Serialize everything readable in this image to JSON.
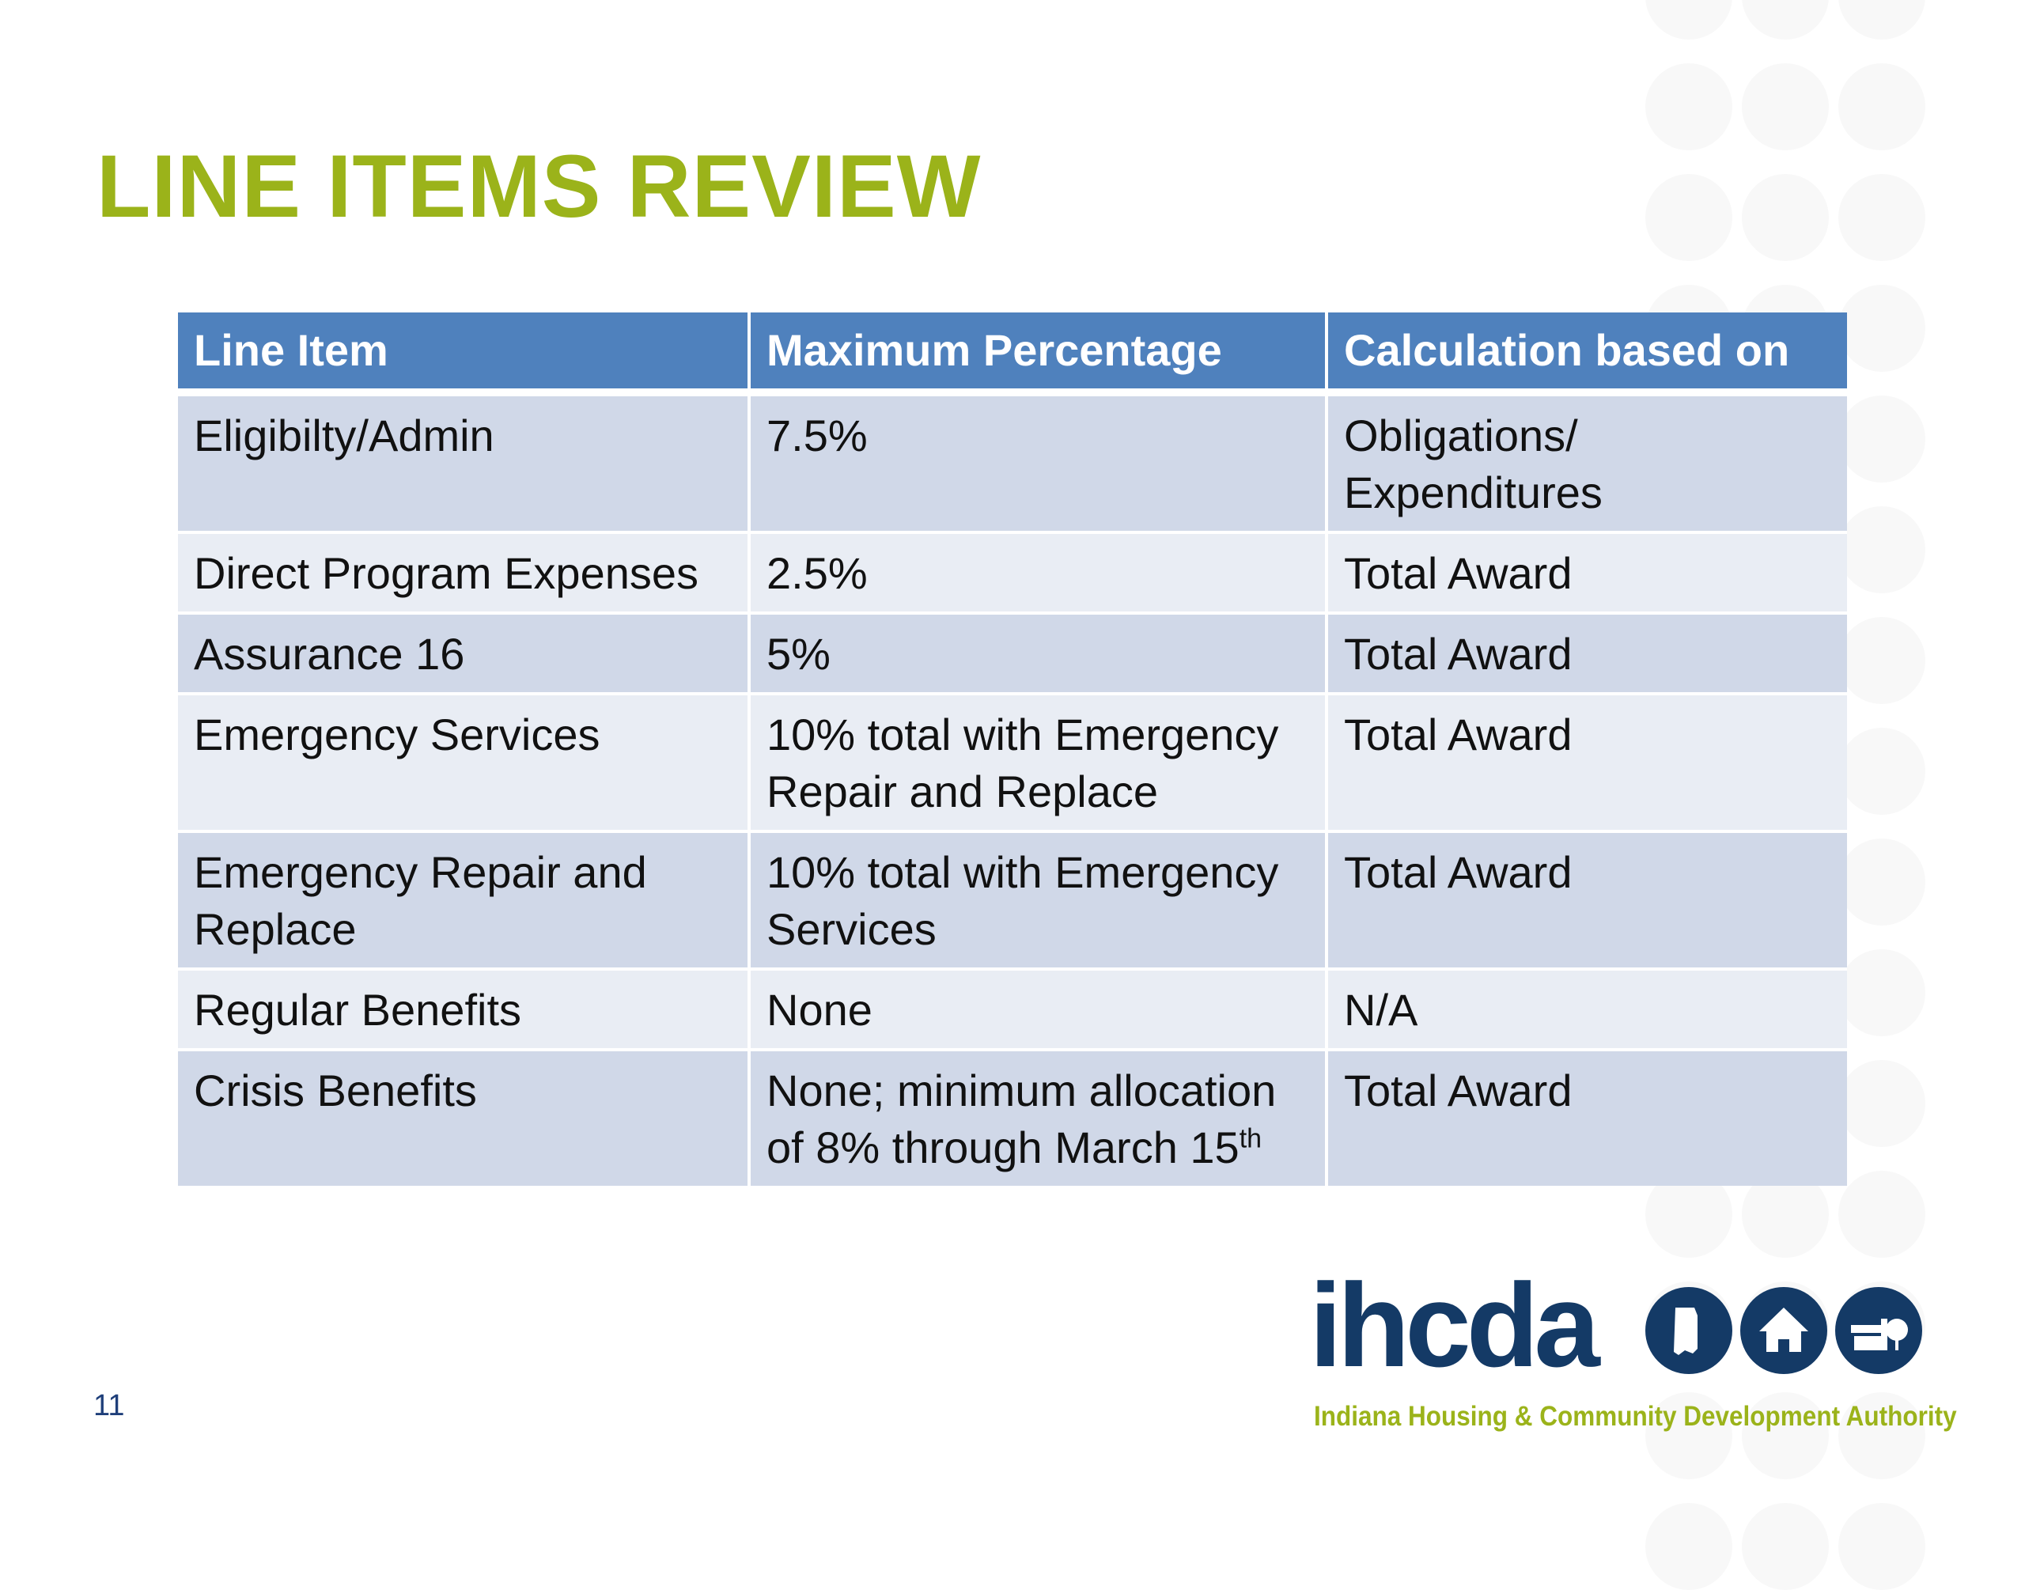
{
  "slide": {
    "title": "LINE ITEMS REVIEW",
    "page_number": "11"
  },
  "table": {
    "headers": [
      "Line Item",
      "Maximum Percentage",
      "Calculation based on"
    ],
    "rows": [
      {
        "item": "Eligibilty/Admin",
        "max": "7.5%",
        "calc": "Obligations/ Expenditures"
      },
      {
        "item": "Direct Program Expenses",
        "max": "2.5%",
        "calc": "Total Award"
      },
      {
        "item": "Assurance 16",
        "max": "5%",
        "calc": "Total Award"
      },
      {
        "item": "Emergency Services",
        "max": "10% total with Emergency Repair and Replace",
        "calc": "Total Award"
      },
      {
        "item": "Emergency Repair and Replace",
        "max": "10% total with Emergency Services",
        "calc": "Total Award"
      },
      {
        "item": "Regular Benefits",
        "max": "None",
        "calc": "N/A"
      },
      {
        "item": "Crisis Benefits",
        "max": "None; minimum allocation of 8% through March 15",
        "max_sup": "th",
        "calc": "Total Award"
      }
    ]
  },
  "logo": {
    "wordmark": "ihcda",
    "tagline": "Indiana Housing & Community Development Authority"
  },
  "colors": {
    "title": "#9bb31a",
    "header": "#4f81bd",
    "row_odd": "#d0d8e8",
    "row_even": "#e9edf4",
    "logo_navy": "#143a66"
  }
}
